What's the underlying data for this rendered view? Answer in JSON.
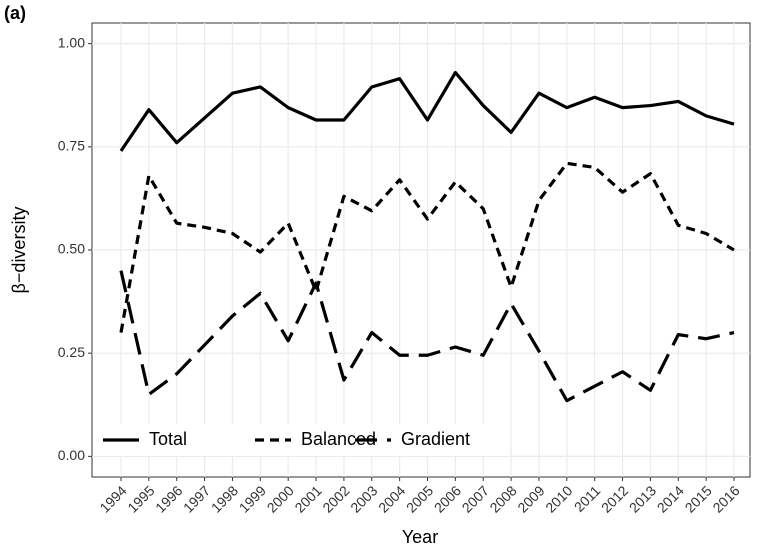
{
  "chart_data": {
    "type": "line",
    "title": "(a)",
    "x_label": "Year",
    "y_label": "β−diversity",
    "categories": [
      "1994",
      "1995",
      "1996",
      "1997",
      "1998",
      "1999",
      "2000",
      "2001",
      "2002",
      "2003",
      "2004",
      "2005",
      "2006",
      "2007",
      "2008",
      "2009",
      "2010",
      "2011",
      "2012",
      "2013",
      "2014",
      "2015",
      "2016"
    ],
    "series": [
      {
        "name": "Total",
        "color": "#000000",
        "linestyle": "solid",
        "values": [
          0.74,
          0.84,
          0.76,
          0.82,
          0.88,
          0.895,
          0.845,
          0.815,
          0.815,
          0.895,
          0.915,
          0.815,
          0.93,
          0.85,
          0.785,
          0.88,
          0.845,
          0.87,
          0.845,
          0.85,
          0.86,
          0.825,
          0.805
        ]
      },
      {
        "name": "Balanced",
        "color": "#000000",
        "linestyle": "dashed",
        "values": [
          0.3,
          0.68,
          0.565,
          0.555,
          0.54,
          0.495,
          0.565,
          0.4,
          0.63,
          0.595,
          0.67,
          0.575,
          0.665,
          0.6,
          0.41,
          0.62,
          0.71,
          0.7,
          0.64,
          0.685,
          0.56,
          0.54,
          0.5
        ]
      },
      {
        "name": "Gradient",
        "color": "#000000",
        "linestyle": "longdash",
        "values": [
          0.45,
          0.15,
          0.2,
          0.27,
          0.34,
          0.395,
          0.28,
          0.42,
          0.185,
          0.3,
          0.245,
          0.245,
          0.265,
          0.245,
          0.37,
          0.255,
          0.135,
          0.17,
          0.205,
          0.16,
          0.295,
          0.285,
          0.3
        ]
      }
    ],
    "ylim": [
      -0.05,
      1.05
    ],
    "yticks": [
      {
        "value": 0,
        "label": "0.00"
      },
      {
        "value": 0.25,
        "label": "0.25"
      },
      {
        "value": 0.5,
        "label": "0.50"
      },
      {
        "value": 0.75,
        "label": "0.75"
      },
      {
        "value": 1,
        "label": "1.00"
      }
    ],
    "grid": true,
    "legend": "bottom-left"
  }
}
